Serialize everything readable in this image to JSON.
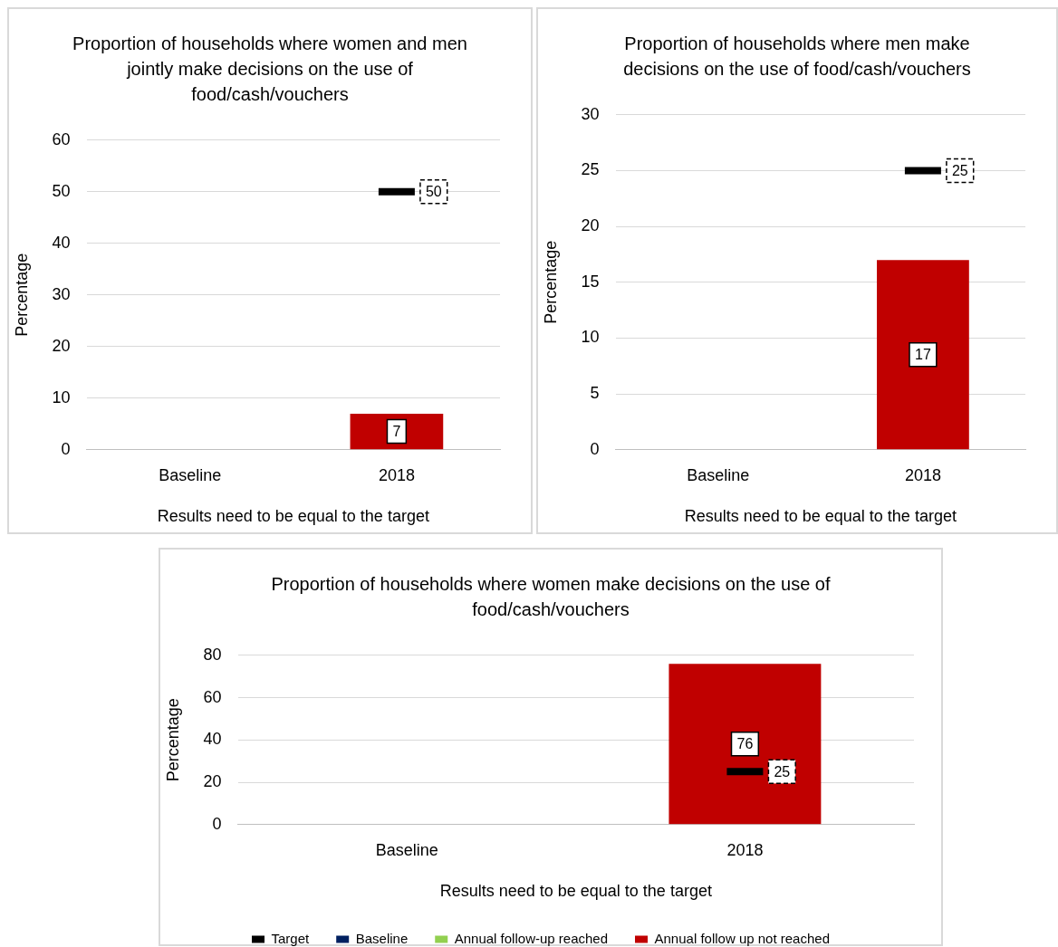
{
  "chart_data": [
    {
      "type": "bar",
      "title": "Proportion of households where women and men jointly make decisions on the use of food/cash/vouchers",
      "categories": [
        "Baseline",
        "2018"
      ],
      "xlabel": "Results need to be equal to the target",
      "ylabel": "Percentage",
      "ylim": [
        0,
        60
      ],
      "yticks": [
        0,
        10,
        20,
        30,
        40,
        50,
        60
      ],
      "grid": "y",
      "data_labels": true,
      "series": [
        {
          "color": "#c00000",
          "values": [
            null,
            7
          ]
        },
        {
          "type": "scatter",
          "marker": "square",
          "color": "#000000",
          "values": [
            null,
            50
          ]
        }
      ]
    },
    {
      "type": "bar",
      "title": "Proportion of households where men make decisions on the use of food/cash/vouchers",
      "categories": [
        "Baseline",
        "2018"
      ],
      "xlabel": "Results need to be equal to the target",
      "ylabel": "Percentage",
      "ylim": [
        0,
        30
      ],
      "yticks": [
        0,
        5,
        10,
        15,
        20,
        25,
        30
      ],
      "grid": "y",
      "data_labels": true,
      "series": [
        {
          "color": "#c00000",
          "values": [
            null,
            17
          ]
        },
        {
          "type": "scatter",
          "marker": "square",
          "color": "#000000",
          "values": [
            null,
            25
          ]
        }
      ]
    },
    {
      "type": "bar",
      "title": "Proportion of households where women make decisions on the use of food/cash/vouchers",
      "categories": [
        "Baseline",
        "2018"
      ],
      "xlabel": "Results need to be equal to the target",
      "ylabel": "Percentage",
      "ylim": [
        0,
        80
      ],
      "yticks": [
        0,
        20,
        40,
        60,
        80
      ],
      "grid": "y",
      "data_labels": true,
      "legend": "bottom",
      "series": [
        {
          "name": "Baseline",
          "color": "#002060",
          "values": [
            null,
            null
          ]
        },
        {
          "name": "Annual follow-up reached",
          "color": "#92d050",
          "values": [
            null,
            null
          ]
        },
        {
          "name": "Annual follow up not reached",
          "color": "#c00000",
          "values": [
            null,
            76
          ]
        },
        {
          "name": "Target",
          "type": "scatter",
          "marker": "square",
          "color": "#000000",
          "values": [
            null,
            25
          ]
        }
      ]
    }
  ]
}
